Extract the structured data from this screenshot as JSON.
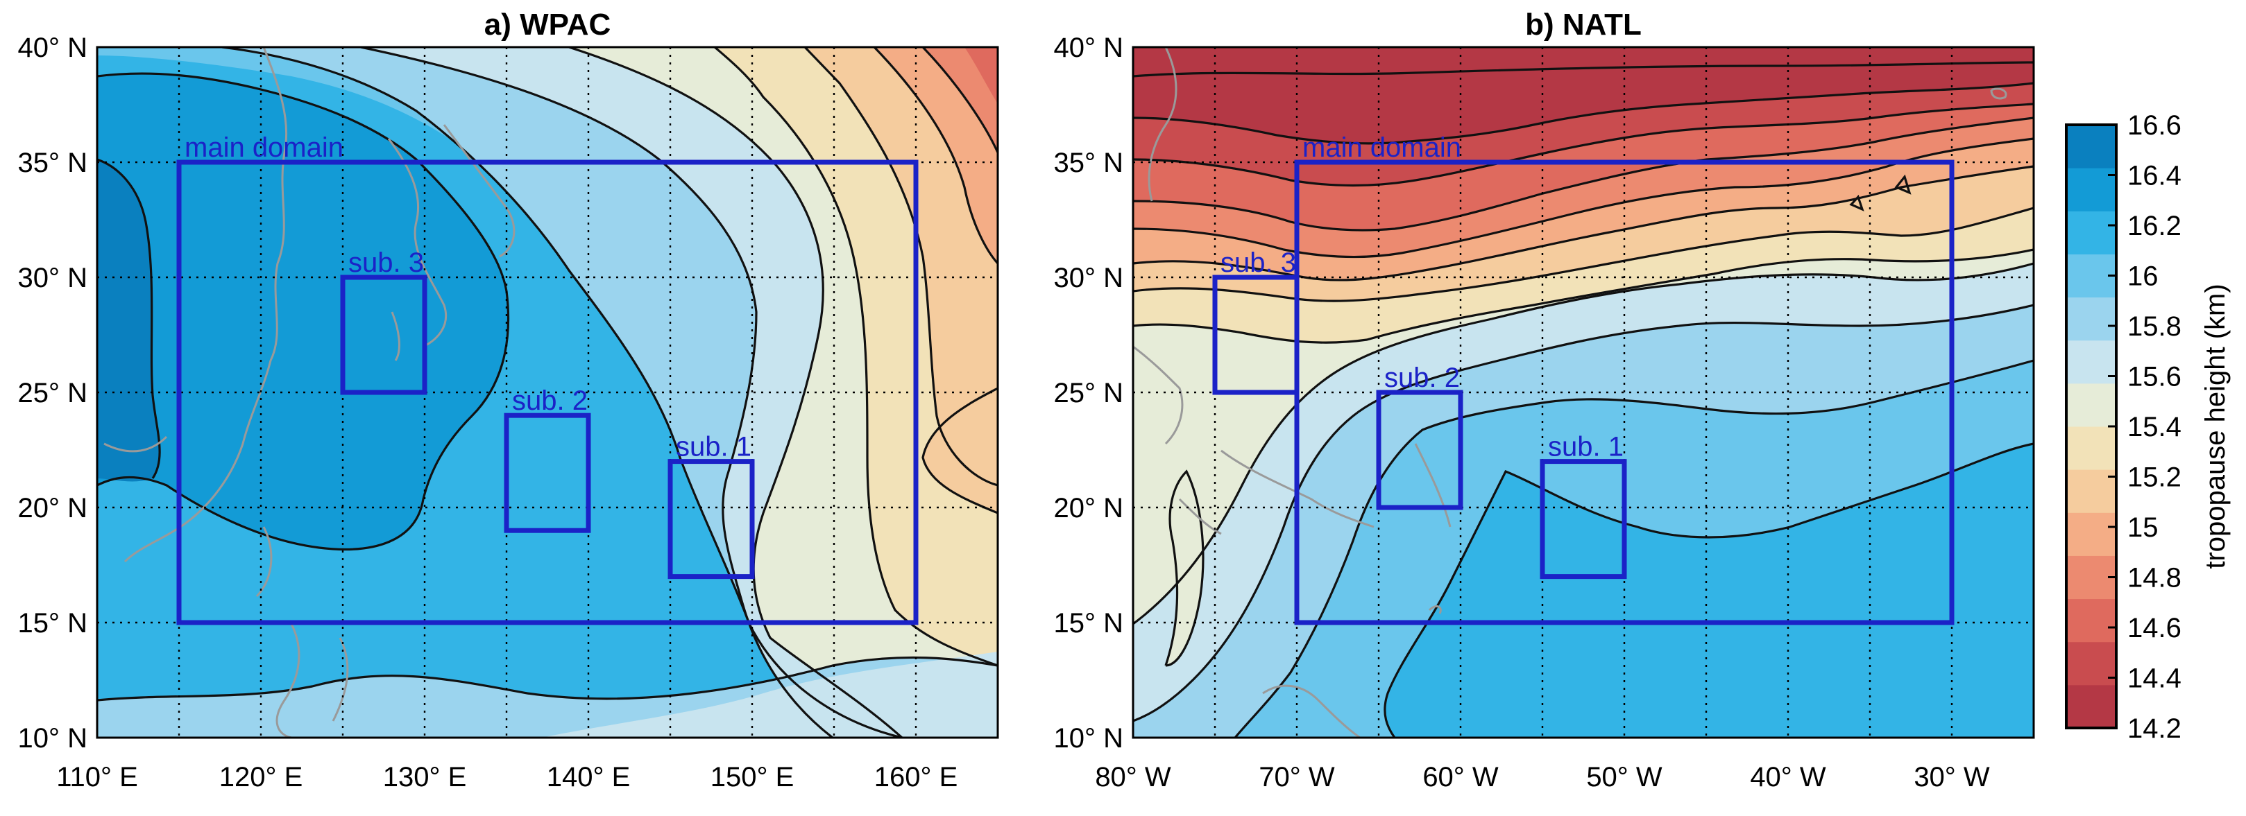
{
  "panels": [
    {
      "id": "wpac",
      "title": "a) WPAC",
      "lon_ticks": [
        "110° E",
        "120° E",
        "130° E",
        "140° E",
        "150° E",
        "160° E"
      ],
      "lat_ticks": [
        "10° N",
        "15° N",
        "20° N",
        "25° N",
        "30° N",
        "35° N",
        "40° N"
      ],
      "lon_range": [
        110,
        165
      ],
      "lat_range": [
        10,
        40
      ],
      "boxes": [
        {
          "label": "main domain",
          "lon": [
            115,
            160
          ],
          "lat": [
            15,
            35
          ]
        },
        {
          "label": "sub. 3",
          "lon": [
            125,
            130
          ],
          "lat": [
            25,
            30
          ]
        },
        {
          "label": "sub. 2",
          "lon": [
            135,
            140
          ],
          "lat": [
            19,
            24
          ]
        },
        {
          "label": "sub. 1",
          "lon": [
            145,
            150
          ],
          "lat": [
            17,
            22
          ]
        }
      ]
    },
    {
      "id": "natl",
      "title": "b) NATL",
      "lon_ticks": [
        "80° W",
        "70° W",
        "60° W",
        "50° W",
        "40° W",
        "30° W"
      ],
      "lat_ticks": [
        "10° N",
        "15° N",
        "20° N",
        "25° N",
        "30° N",
        "35° N",
        "40° N"
      ],
      "lon_range": [
        -80,
        -25
      ],
      "lat_range": [
        10,
        40
      ],
      "boxes": [
        {
          "label": "main domain",
          "lon": [
            -70,
            -30
          ],
          "lat": [
            15,
            35
          ]
        },
        {
          "label": "sub. 3",
          "lon": [
            -75,
            -70
          ],
          "lat": [
            25,
            30
          ]
        },
        {
          "label": "sub. 2",
          "lon": [
            -65,
            -60
          ],
          "lat": [
            20,
            25
          ]
        },
        {
          "label": "sub. 1",
          "lon": [
            -55,
            -50
          ],
          "lat": [
            17,
            22
          ]
        }
      ]
    }
  ],
  "colorbar": {
    "label": "tropopause height (km)",
    "ticks": [
      "16.6",
      "16.4",
      "16.2",
      "16",
      "15.8",
      "15.6",
      "15.4",
      "15.2",
      "15",
      "14.8",
      "14.6",
      "14.4",
      "14.2"
    ],
    "range": [
      14.2,
      16.6
    ],
    "colors": [
      "#b43845",
      "#c94c4f",
      "#df6a5e",
      "#ec8a70",
      "#f4ad86",
      "#f5cc9e",
      "#f2e2b8",
      "#e6ecd8",
      "#c8e4ef",
      "#9bd4ee",
      "#6ac6ec",
      "#33b4e6",
      "#139bd6",
      "#0a80bf"
    ]
  },
  "box_color": "#1b22c7",
  "coast_color": "#9a9a9a"
}
